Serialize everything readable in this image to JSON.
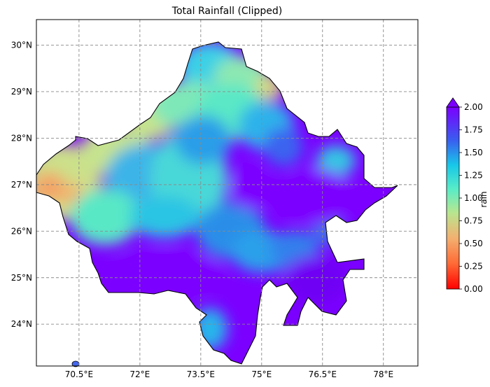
{
  "title": "Total Rainfall (Clipped)",
  "map": {
    "lon_range": [
      69.45,
      78.85
    ],
    "lat_range": [
      23.1,
      30.55
    ],
    "lon_ticks": [
      "70.5°E",
      "72°E",
      "73.5°E",
      "75°E",
      "76.5°E",
      "78°E"
    ],
    "lat_ticks": [
      "30°N",
      "29°N",
      "28°N",
      "27°N",
      "26°N",
      "25°N",
      "24°N"
    ],
    "gridlines": true,
    "gridline_style": "dashed-gray"
  },
  "colorbar": {
    "label": "rain",
    "cmap": "rainbow_r",
    "range": [
      0.0,
      2.0
    ],
    "extend": "max",
    "ticks": [
      "0.00",
      "0.25",
      "0.50",
      "0.75",
      "1.00",
      "1.25",
      "1.50",
      "1.75",
      "2.00"
    ]
  },
  "colors": {
    "high": "#7b00ff",
    "mid_high": "#2aa8e8",
    "mid": "#58ecc8",
    "mid_low": "#b8e690",
    "low": "#f3b070",
    "zero": "#ff0000"
  }
}
